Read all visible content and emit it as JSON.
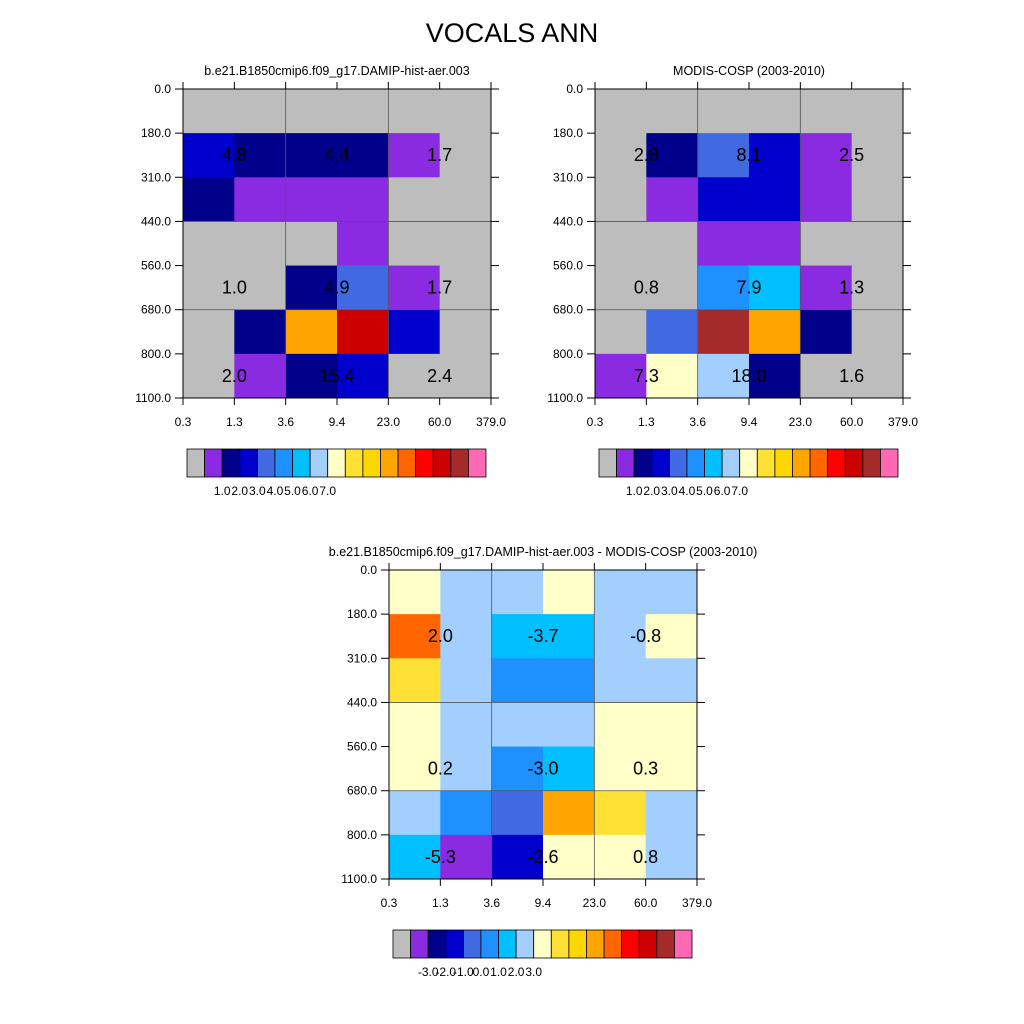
{
  "figure_title": "VOCALS ANN",
  "chart_data": [
    {
      "type": "heatmap",
      "title": "b.e21.B1850cmip6.f09_g17.DAMIP-hist-aer.003",
      "x_ticks": [
        "0.3",
        "1.3",
        "3.6",
        "9.4",
        "23.0",
        "60.0",
        "379.0"
      ],
      "y_ticks": [
        "0.0",
        "180.0",
        "310.0",
        "440.0",
        "560.0",
        "680.0",
        "800.0",
        "1100.0"
      ],
      "colors": [
        [
          "#bdbdbd",
          "#bdbdbd",
          "#bdbdbd",
          "#bdbdbd",
          "#bdbdbd",
          "#bdbdbd"
        ],
        [
          "#0000cd",
          "#00008b",
          "#00008b",
          "#00008b",
          "#8a2be2",
          "#bdbdbd"
        ],
        [
          "#00008b",
          "#8a2be2",
          "#8a2be2",
          "#8a2be2",
          "#bdbdbd",
          "#bdbdbd"
        ],
        [
          "#bdbdbd",
          "#bdbdbd",
          "#bdbdbd",
          "#8a2be2",
          "#bdbdbd",
          "#bdbdbd"
        ],
        [
          "#bdbdbd",
          "#bdbdbd",
          "#00008b",
          "#4169e1",
          "#8a2be2",
          "#bdbdbd"
        ],
        [
          "#bdbdbd",
          "#00008b",
          "#ffa500",
          "#cd0000",
          "#0000cd",
          "#bdbdbd"
        ],
        [
          "#bdbdbd",
          "#8a2be2",
          "#00008b",
          "#0000cd",
          "#bdbdbd",
          "#bdbdbd"
        ]
      ],
      "labels": [
        {
          "col": 0,
          "row": 1,
          "text": "4.8"
        },
        {
          "col": 2,
          "row": 1,
          "text": "4.4"
        },
        {
          "col": 4,
          "row": 1,
          "text": "1.7"
        },
        {
          "col": 0,
          "row": 4,
          "text": "1.0"
        },
        {
          "col": 2,
          "row": 4,
          "text": "4.9"
        },
        {
          "col": 4,
          "row": 4,
          "text": "1.7"
        },
        {
          "col": 0,
          "row": 6,
          "text": "2.0"
        },
        {
          "col": 2,
          "row": 6,
          "text": "15.4"
        },
        {
          "col": 4,
          "row": 6,
          "text": "2.4"
        }
      ],
      "colorbar": {
        "colors": [
          "#bdbdbd",
          "#8a2be2",
          "#00008b",
          "#0000cd",
          "#4169e1",
          "#1e90ff",
          "#00bfff",
          "#a2cffe",
          "#ffffc8",
          "#ffe135",
          "#ffd700",
          "#ffa500",
          "#ff6600",
          "#ff0000",
          "#cd0000",
          "#a52a2a",
          "#ff69b4"
        ],
        "labels": [
          "1.0",
          "2.0",
          "3.0",
          "4.0",
          "5.0",
          "6.0",
          "7.0"
        ]
      }
    },
    {
      "type": "heatmap",
      "title": "MODIS-COSP (2003-2010)",
      "x_ticks": [
        "0.3",
        "1.3",
        "3.6",
        "9.4",
        "23.0",
        "60.0",
        "379.0"
      ],
      "y_ticks": [
        "0.0",
        "180.0",
        "310.0",
        "440.0",
        "560.0",
        "680.0",
        "800.0",
        "1100.0"
      ],
      "colors": [
        [
          "#bdbdbd",
          "#bdbdbd",
          "#bdbdbd",
          "#bdbdbd",
          "#bdbdbd",
          "#bdbdbd"
        ],
        [
          "#bdbdbd",
          "#00008b",
          "#4169e1",
          "#0000cd",
          "#8a2be2",
          "#bdbdbd"
        ],
        [
          "#bdbdbd",
          "#8a2be2",
          "#0000cd",
          "#0000cd",
          "#8a2be2",
          "#bdbdbd"
        ],
        [
          "#bdbdbd",
          "#bdbdbd",
          "#8a2be2",
          "#8a2be2",
          "#bdbdbd",
          "#bdbdbd"
        ],
        [
          "#bdbdbd",
          "#bdbdbd",
          "#1e90ff",
          "#00bfff",
          "#8a2be2",
          "#bdbdbd"
        ],
        [
          "#bdbdbd",
          "#4169e1",
          "#a52a2a",
          "#ffa500",
          "#00008b",
          "#bdbdbd"
        ],
        [
          "#8a2be2",
          "#ffffc8",
          "#a2cffe",
          "#00008b",
          "#bdbdbd",
          "#bdbdbd"
        ]
      ],
      "labels": [
        {
          "col": 0,
          "row": 1,
          "text": "2.8"
        },
        {
          "col": 2,
          "row": 1,
          "text": "8.1"
        },
        {
          "col": 4,
          "row": 1,
          "text": "2.5"
        },
        {
          "col": 0,
          "row": 4,
          "text": "0.8"
        },
        {
          "col": 2,
          "row": 4,
          "text": "7.9"
        },
        {
          "col": 4,
          "row": 4,
          "text": "1.3"
        },
        {
          "col": 0,
          "row": 6,
          "text": "7.3"
        },
        {
          "col": 2,
          "row": 6,
          "text": "18.0"
        },
        {
          "col": 4,
          "row": 6,
          "text": "1.6"
        }
      ],
      "colorbar": {
        "colors": [
          "#bdbdbd",
          "#8a2be2",
          "#00008b",
          "#0000cd",
          "#4169e1",
          "#1e90ff",
          "#00bfff",
          "#a2cffe",
          "#ffffc8",
          "#ffe135",
          "#ffd700",
          "#ffa500",
          "#ff6600",
          "#ff0000",
          "#cd0000",
          "#a52a2a",
          "#ff69b4"
        ],
        "labels": [
          "1.0",
          "2.0",
          "3.0",
          "4.0",
          "5.0",
          "6.0",
          "7.0"
        ]
      }
    },
    {
      "type": "heatmap",
      "title": "b.e21.B1850cmip6.f09_g17.DAMIP-hist-aer.003 - MODIS-COSP (2003-2010)",
      "x_ticks": [
        "0.3",
        "1.3",
        "3.6",
        "9.4",
        "23.0",
        "60.0",
        "379.0"
      ],
      "y_ticks": [
        "0.0",
        "180.0",
        "310.0",
        "440.0",
        "560.0",
        "680.0",
        "800.0",
        "1100.0"
      ],
      "colors": [
        [
          "#ffffc8",
          "#a2cffe",
          "#a2cffe",
          "#ffffc8",
          "#a2cffe",
          "#a2cffe"
        ],
        [
          "#ff6600",
          "#a2cffe",
          "#00bfff",
          "#00bfff",
          "#a2cffe",
          "#ffffc8"
        ],
        [
          "#ffe135",
          "#a2cffe",
          "#1e90ff",
          "#1e90ff",
          "#a2cffe",
          "#a2cffe"
        ],
        [
          "#ffffc8",
          "#a2cffe",
          "#a2cffe",
          "#a2cffe",
          "#ffffc8",
          "#ffffc8"
        ],
        [
          "#ffffc8",
          "#a2cffe",
          "#1e90ff",
          "#00bfff",
          "#ffffc8",
          "#ffffc8"
        ],
        [
          "#a2cffe",
          "#1e90ff",
          "#4169e1",
          "#ffa500",
          "#ffe135",
          "#a2cffe"
        ],
        [
          "#00bfff",
          "#8a2be2",
          "#0000cd",
          "#ffffc8",
          "#ffffc8",
          "#a2cffe"
        ]
      ],
      "labels": [
        {
          "col": 0,
          "row": 1,
          "text": "2.0"
        },
        {
          "col": 2,
          "row": 1,
          "text": "-3.7"
        },
        {
          "col": 4,
          "row": 1,
          "text": "-0.8"
        },
        {
          "col": 0,
          "row": 4,
          "text": "0.2"
        },
        {
          "col": 2,
          "row": 4,
          "text": "-3.0"
        },
        {
          "col": 4,
          "row": 4,
          "text": "0.3"
        },
        {
          "col": 0,
          "row": 6,
          "text": "-5.3"
        },
        {
          "col": 2,
          "row": 6,
          "text": "-2.6"
        },
        {
          "col": 4,
          "row": 6,
          "text": "0.8"
        }
      ],
      "colorbar": {
        "colors": [
          "#bdbdbd",
          "#8a2be2",
          "#00008b",
          "#0000cd",
          "#4169e1",
          "#1e90ff",
          "#00bfff",
          "#a2cffe",
          "#ffffc8",
          "#ffe135",
          "#ffd700",
          "#ffa500",
          "#ff6600",
          "#ff0000",
          "#cd0000",
          "#a52a2a",
          "#ff69b4"
        ],
        "labels": [
          "-3.0",
          "-2.0",
          "-1.0",
          "0.0",
          "1.0",
          "2.0",
          "3.0"
        ]
      }
    }
  ]
}
